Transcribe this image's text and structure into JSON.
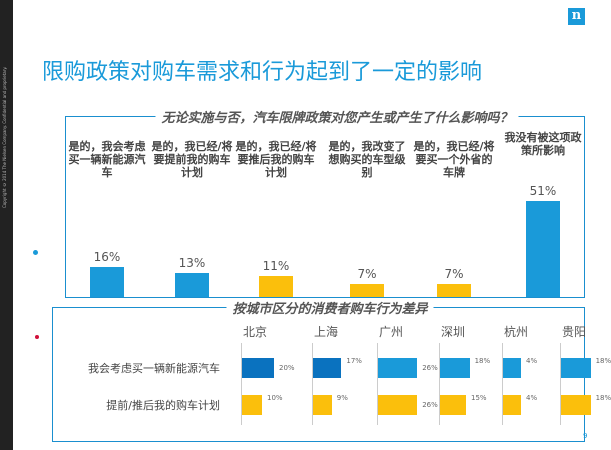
{
  "copyright": "Copyright © 2014 The Nielsen Company. Confidential and proprietary.",
  "logo": "n",
  "title": "限购政策对购车需求和行为起到了一定的影响",
  "page_number": "9",
  "colors": {
    "blue": "#1a9ad9",
    "dark_blue": "#0a72bf",
    "yellow": "#fbbf0c"
  },
  "chart_data": [
    {
      "type": "bar",
      "title": "无论实施与否，汽车限牌政策对您产生或产生了什么影响吗？",
      "categories": [
        "是的，我会考虑买一辆新能源汽车",
        "是的，我已经/将要提前我的购车计划",
        "是的，我已经/将要推后我的购车计划",
        "是的，我改变了想购买的车型级别",
        "是的，我已经/将要买一个外省的车牌",
        "我没有被这项政策所影响"
      ],
      "values": [
        16,
        13,
        11,
        7,
        7,
        51
      ],
      "labels": [
        "16%",
        "13%",
        "11%",
        "7%",
        "7%",
        "51%"
      ],
      "bar_colors": [
        "#1a9ad9",
        "#1a9ad9",
        "#fbbf0c",
        "#fbbf0c",
        "#fbbf0c",
        "#1a9ad9"
      ],
      "unit": "%"
    },
    {
      "type": "bar",
      "title": "按城市区分的消费者购车行为差异",
      "categories": [
        "北京",
        "上海",
        "广州",
        "深圳",
        "杭州",
        "贵阳"
      ],
      "series": [
        {
          "name": "我会考虑买一辆新能源汽车",
          "values": [
            20,
            17,
            26,
            18,
            4,
            18
          ],
          "labels": [
            "20%",
            "17%",
            "26%",
            "18%",
            "4%",
            "18%"
          ],
          "colors": [
            "#0a72bf",
            "#0a72bf",
            "#1a9ad9",
            "#1a9ad9",
            "#1a9ad9",
            "#1a9ad9"
          ]
        },
        {
          "name": "提前/推后我的购车计划",
          "values": [
            10,
            9,
            26,
            15,
            4,
            18
          ],
          "labels": [
            "10%",
            "9%",
            "26%",
            "15%",
            "4%",
            "18%"
          ],
          "colors": [
            "#fbbf0c",
            "#fbbf0c",
            "#fbbf0c",
            "#fbbf0c",
            "#fbbf0c",
            "#fbbf0c"
          ]
        }
      ],
      "unit": "%"
    }
  ]
}
